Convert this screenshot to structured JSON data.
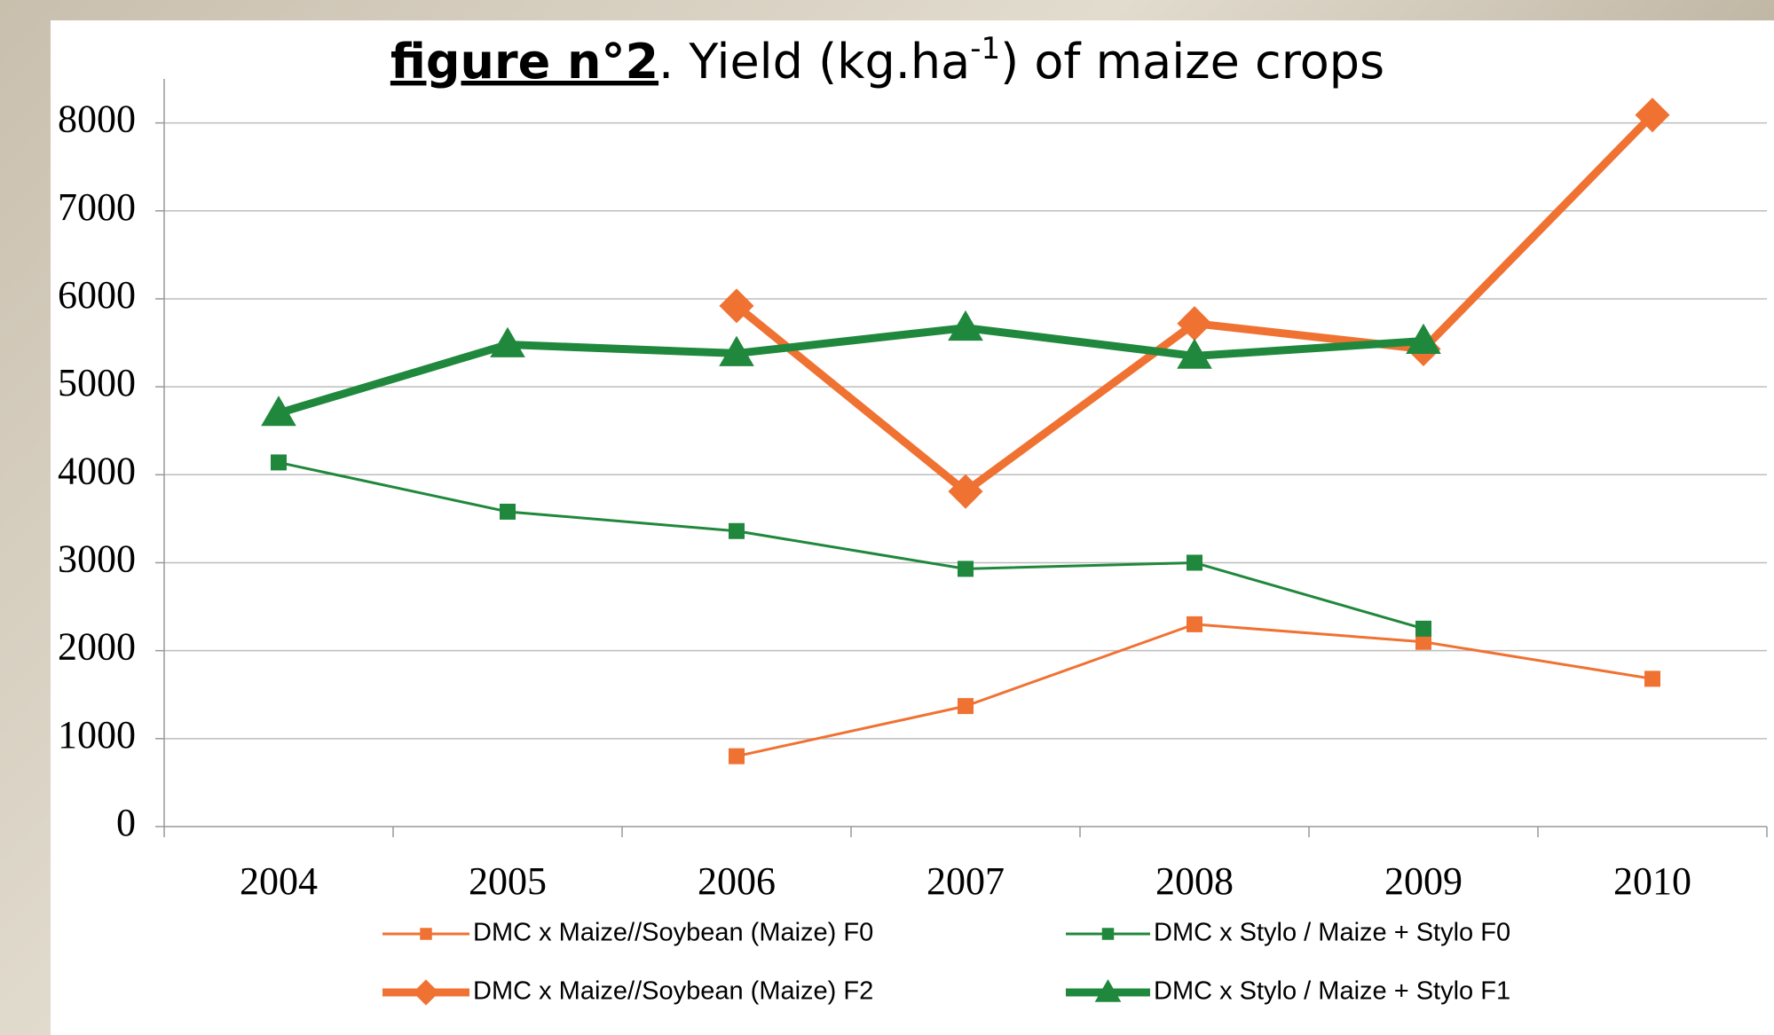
{
  "chart_data": {
    "type": "line",
    "title": [
      "figure n°2",
      ". Yield (kg.ha",
      "-1",
      ") of maize crops"
    ],
    "categories": [
      "2004",
      "2005",
      "2006",
      "2007",
      "2008",
      "2009",
      "2010"
    ],
    "ylim": [
      0,
      8500
    ],
    "yticks": [
      0,
      1000,
      2000,
      3000,
      4000,
      5000,
      6000,
      7000,
      8000
    ],
    "grid": true,
    "series": [
      {
        "name": "DMC x Maize//Soybean (Maize) F0",
        "color": "#f07232",
        "marker": "square",
        "values": [
          null,
          null,
          800,
          1370,
          2300,
          2100,
          1680
        ]
      },
      {
        "name": "DMC x Stylo / Maize + Stylo F0",
        "color": "#20883c",
        "marker": "square",
        "values": [
          4140,
          3580,
          3360,
          2930,
          3000,
          2250,
          null
        ]
      },
      {
        "name": "DMC x Maize//Soybean (Maize) F2",
        "color": "#f07232",
        "marker": "diamond",
        "values": [
          null,
          null,
          5920,
          3810,
          5720,
          5430,
          8090
        ]
      },
      {
        "name": "DMC x Stylo / Maize + Stylo F1",
        "color": "#20883c",
        "marker": "triangle",
        "values": [
          4700,
          5480,
          5380,
          5670,
          5350,
          5520,
          null
        ]
      }
    ]
  }
}
